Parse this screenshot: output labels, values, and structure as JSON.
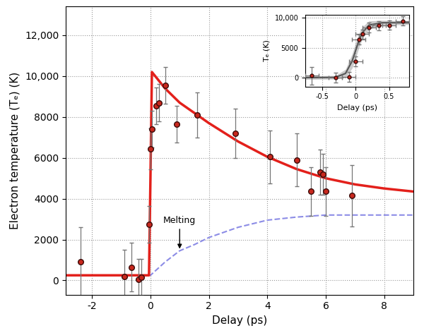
{
  "chart_data": [
    {
      "type": "line",
      "x_label": "Delay (ps)",
      "y_label": "Electron temperature (Tₑ) (K)",
      "xlim": [
        -2.9,
        9.0
      ],
      "ylim": [
        -700,
        13400
      ],
      "xticks": [
        -2,
        0,
        2,
        4,
        6,
        8
      ],
      "yticks": [
        0,
        2000,
        4000,
        6000,
        8000,
        {
          "value": 10000,
          "label": "10,000"
        },
        {
          "value": 12000,
          "label": "12,000"
        }
      ],
      "grid": true,
      "annotations": [
        {
          "text": "Melting",
          "x": 1.0,
          "y": 1450,
          "text_x": 1.0,
          "text_y": 2700
        }
      ],
      "series": [
        {
          "type": "line",
          "line_style": "dashed",
          "color": "#8c8ce6",
          "x": [
            -3.0,
            0.0,
            0.5,
            1.0,
            1.5,
            2.0,
            3.0,
            4.0,
            5.0,
            6.0,
            7.0,
            8.0,
            9.0
          ],
          "values": [
            250,
            250,
            900,
            1450,
            1750,
            2100,
            2600,
            2950,
            3100,
            3200,
            3200,
            3200,
            3200
          ]
        },
        {
          "type": "line",
          "line_style": "solid",
          "color": "#e3201b",
          "x": [
            -3.0,
            -0.05,
            0.0,
            0.05,
            0.5,
            1.0,
            2.0,
            3.0,
            4.0,
            5.0,
            6.0,
            7.0,
            8.0,
            9.0
          ],
          "values": [
            250,
            250,
            5000,
            10200,
            9400,
            8700,
            7700,
            6800,
            6050,
            5450,
            5000,
            4700,
            4500,
            4350
          ]
        },
        {
          "type": "scatter",
          "marker": "o",
          "color": "#c8281e",
          "x": [
            -2.4,
            -0.9,
            -0.65,
            -0.4,
            -0.3,
            -0.05,
            0.0,
            0.05,
            0.2,
            0.3,
            0.5,
            0.9,
            1.6,
            2.9,
            4.1,
            5.0,
            5.5,
            5.8,
            5.9,
            6.0,
            6.9
          ],
          "values": [
            900,
            200,
            650,
            50,
            150,
            2750,
            6450,
            7400,
            8550,
            8700,
            9550,
            7650,
            8100,
            7200,
            6050,
            5900,
            4350,
            5300,
            5200,
            4350,
            4150
          ],
          "errors": [
            1700,
            1300,
            1200,
            1000,
            900,
            900,
            1000,
            900,
            900,
            900,
            900,
            900,
            1100,
            1200,
            1300,
            1300,
            1200,
            1100,
            1000,
            1200,
            1500
          ]
        }
      ]
    },
    {
      "type": "line",
      "x_label": "Delay (ps)",
      "y_label": "Tₑ (K)",
      "xlim": [
        -0.75,
        0.8
      ],
      "ylim": [
        -1500,
        10500
      ],
      "xticks": [
        -0.5,
        0,
        0.5
      ],
      "yticks": [
        0,
        5000,
        {
          "value": 10000,
          "label": "10,000"
        }
      ],
      "grid": true,
      "series": [
        {
          "type": "line",
          "line_style": "solid",
          "color": "#555555",
          "x": [
            -0.75,
            -0.3,
            -0.15,
            -0.05,
            0.0,
            0.05,
            0.1,
            0.2,
            0.4,
            0.8
          ],
          "values": [
            0,
            50,
            700,
            2800,
            4500,
            6200,
            7500,
            8800,
            9200,
            9200
          ],
          "band_errors": [
            300,
            300,
            700,
            1200,
            1300,
            1200,
            1000,
            700,
            400,
            300
          ]
        },
        {
          "type": "scatter",
          "marker": "o",
          "color": "#c8281e",
          "x": [
            -0.65,
            -0.3,
            -0.1,
            0.0,
            0.05,
            0.1,
            0.2,
            0.35,
            0.5,
            0.7
          ],
          "values": [
            300,
            0,
            150,
            2700,
            6400,
            7300,
            8400,
            8700,
            8800,
            9500
          ],
          "errors": [
            1500,
            800,
            800,
            800,
            800,
            800,
            800,
            800,
            800,
            800
          ],
          "x_errors": [
            0.1,
            0.1,
            0.1,
            0.1,
            0.1,
            0.1,
            0.1,
            0.1,
            0.1,
            0.1
          ]
        }
      ]
    }
  ]
}
